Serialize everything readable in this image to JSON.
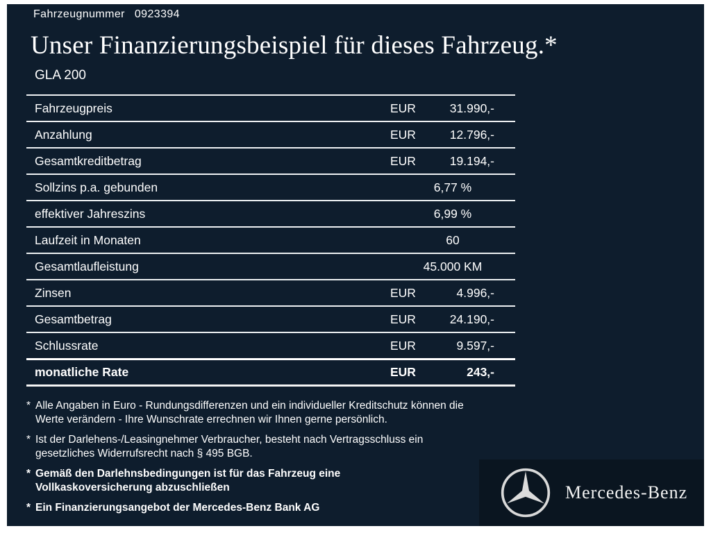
{
  "meta": {
    "vehicle_number_label": "Fahrzeugnummer",
    "vehicle_number": "0923394"
  },
  "header": {
    "title": "Unser Finanzierungsbeispiel für dieses Fahrzeug.*",
    "model": "GLA 200"
  },
  "table": {
    "rows": [
      {
        "label": "Fahrzeugpreis",
        "currency": "EUR",
        "value": "31.990,-",
        "bold": false
      },
      {
        "label": "Anzahlung",
        "currency": "EUR",
        "value": "12.796,-",
        "bold": false
      },
      {
        "label": "Gesamtkreditbetrag",
        "currency": "EUR",
        "value": "19.194,-",
        "bold": false
      },
      {
        "label": "Sollzins p.a. gebunden",
        "currency": "",
        "value": "6,77 %",
        "bold": false
      },
      {
        "label": "effektiver Jahreszins",
        "currency": "",
        "value": "6,99 %",
        "bold": false
      },
      {
        "label": "Laufzeit in Monaten",
        "currency": "",
        "value": "60",
        "bold": false
      },
      {
        "label": "Gesamtlaufleistung",
        "currency": "",
        "value": "45.000 KM",
        "bold": false
      },
      {
        "label": "Zinsen",
        "currency": "EUR",
        "value": "4.996,-",
        "bold": false
      },
      {
        "label": "Gesamtbetrag",
        "currency": "EUR",
        "value": "24.190,-",
        "bold": false
      },
      {
        "label": "Schlussrate",
        "currency": "EUR",
        "value": "9.597,-",
        "bold": false
      },
      {
        "label": "monatliche Rate",
        "currency": "EUR",
        "value": "243,-",
        "bold": true
      }
    ]
  },
  "footnotes": [
    {
      "marker": "*",
      "bold": false,
      "lines": [
        "Alle Angaben in Euro - Rundungsdifferenzen und ein individueller Kreditschutz können die",
        "Werte verändern - Ihre Wunschrate errechnen wir Ihnen gerne persönlich."
      ]
    },
    {
      "marker": "*",
      "bold": false,
      "lines": [
        "Ist der Darlehens-/Leasingnehmer Verbraucher, besteht nach Vertragsschluss ein",
        "gesetzliches Widerrufsrecht nach § 495 BGB."
      ]
    },
    {
      "marker": "*",
      "bold": true,
      "lines": [
        "Gemäß den Darlehnsbedingungen ist für das Fahrzeug eine",
        "Vollkaskoversicherung abzuschließen"
      ]
    },
    {
      "marker": "*",
      "bold": true,
      "lines": [
        "Ein Finanzierungsangebot der Mercedes-Benz Bank AG"
      ]
    }
  ],
  "brand": {
    "name": "Mercedes-Benz"
  },
  "colors": {
    "background": "#0e1d2d",
    "panel": "#0a1520",
    "text": "#ffffff",
    "line": "#eef1f3"
  }
}
